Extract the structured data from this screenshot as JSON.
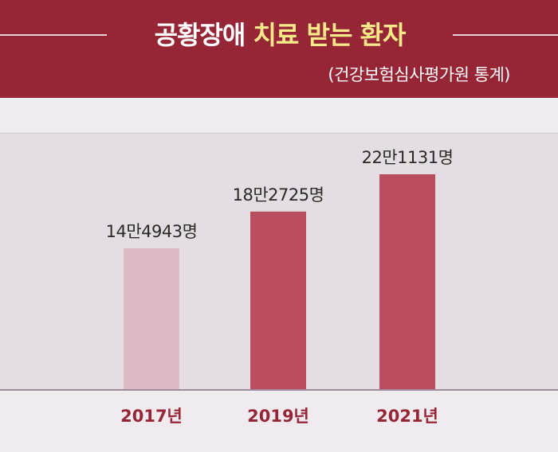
{
  "header": {
    "title_part1": "공황장애",
    "title_part2": "치료 받는 환자",
    "source": "(건강보험심사평가원 통계)"
  },
  "chart_data": {
    "type": "bar",
    "categories": [
      "2017년",
      "2019년",
      "2021년"
    ],
    "values": [
      144943,
      182725,
      221131
    ],
    "value_labels": [
      "14만4943명",
      "18만2725명",
      "22만1131명"
    ],
    "title": "공황장애 치료 받는 환자",
    "xlabel": "",
    "ylabel": "",
    "grid": false,
    "legend": "none",
    "bar_colors": [
      "#dbbac5",
      "#bb4d60",
      "#bb4d60"
    ]
  }
}
